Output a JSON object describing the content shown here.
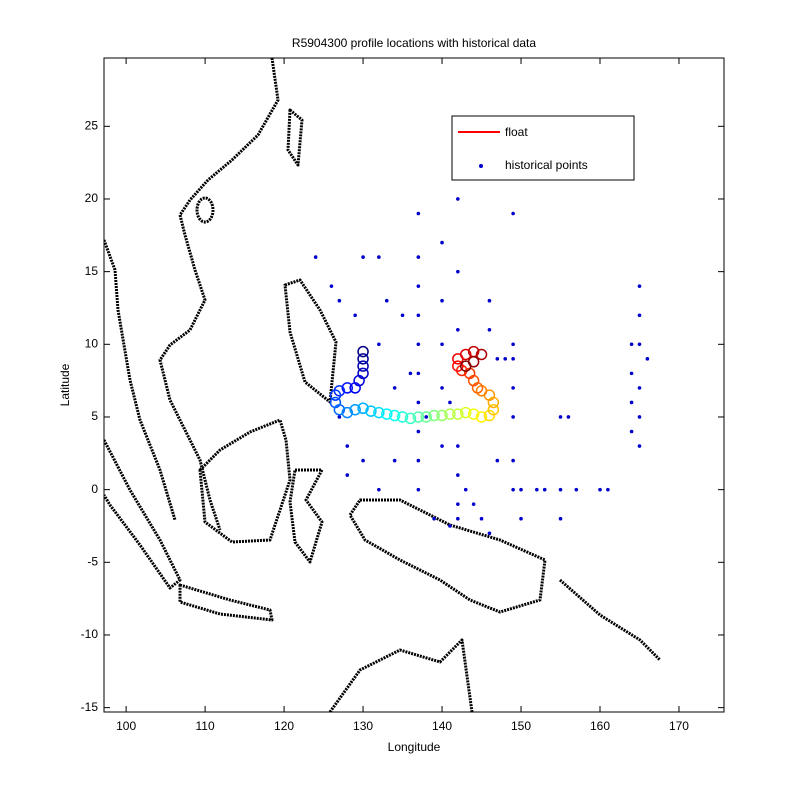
{
  "chart_data": {
    "type": "scatter",
    "title": "R5904300 profile locations with historical data",
    "xlabel": "Longitude",
    "ylabel": "Latitude",
    "xlim": [
      97.2,
      175.7
    ],
    "ylim": [
      -15.3,
      29.7
    ],
    "xticks": [
      100,
      110,
      120,
      130,
      140,
      150,
      160,
      170
    ],
    "yticks": [
      -15,
      -10,
      -5,
      0,
      5,
      10,
      15,
      20,
      25
    ],
    "legend": "upper right",
    "series": [
      {
        "name": "float",
        "color": "#ff0000",
        "colormap": "jet",
        "x": [
          130,
          130,
          130,
          130,
          129.5,
          129,
          128,
          127,
          126.5,
          126.5,
          127,
          128,
          129,
          130,
          131,
          132,
          133,
          134,
          135,
          136,
          137,
          138,
          139,
          140,
          141,
          142,
          143,
          144,
          145,
          146,
          146.5,
          146.5,
          146,
          145,
          144.5,
          144,
          143.5,
          142.5,
          142,
          142,
          143,
          144,
          145,
          144,
          143
        ],
        "y": [
          9.5,
          9,
          8.5,
          8,
          7.5,
          7,
          7,
          6.8,
          6.5,
          6,
          5.5,
          5.3,
          5.5,
          5.6,
          5.4,
          5.3,
          5.2,
          5.1,
          5,
          4.9,
          5,
          5,
          5.1,
          5.1,
          5.2,
          5.2,
          5.3,
          5.2,
          5,
          5.1,
          5.5,
          6,
          6.5,
          6.8,
          7,
          7.5,
          8,
          8.2,
          8.5,
          9,
          9.3,
          9.5,
          9.3,
          8.8,
          8.5
        ]
      },
      {
        "name": "historical points",
        "color": "#0000cc",
        "x": [
          137,
          137,
          137,
          137,
          137,
          137,
          137,
          137,
          137,
          137,
          140,
          140,
          140,
          140,
          140,
          142,
          142,
          142,
          142,
          142,
          142,
          142,
          143,
          144,
          145,
          146,
          146,
          146,
          147,
          148,
          149,
          149,
          149,
          149,
          149,
          149,
          149,
          150,
          152,
          153,
          155,
          157,
          160,
          161,
          155,
          156,
          155,
          164,
          164,
          164,
          164,
          165,
          165,
          165,
          165,
          165,
          165,
          166,
          124,
          126,
          127,
          129,
          130,
          132,
          133,
          135,
          132,
          134,
          136,
          127,
          128,
          128,
          130,
          132,
          134,
          139,
          141,
          147,
          150,
          138,
          141
        ],
        "y": [
          19,
          16,
          14,
          12,
          10,
          8,
          6,
          4,
          2,
          0,
          17,
          13,
          10,
          7,
          3,
          20,
          15,
          11,
          3,
          1,
          -1,
          -2,
          0,
          -1,
          -2,
          -3,
          13,
          11,
          9,
          9,
          10,
          19,
          9,
          7,
          5,
          2,
          0,
          0,
          0,
          0,
          0,
          0,
          0,
          0,
          5,
          5,
          -2,
          10,
          8,
          6,
          4,
          14,
          12,
          10,
          7,
          5,
          3,
          9,
          16,
          14,
          13,
          12,
          16,
          16,
          13,
          12,
          10,
          7,
          8,
          5,
          3,
          1,
          2,
          0,
          2,
          -2,
          -2.5,
          2,
          -2,
          5,
          6
        ]
      }
    ]
  }
}
